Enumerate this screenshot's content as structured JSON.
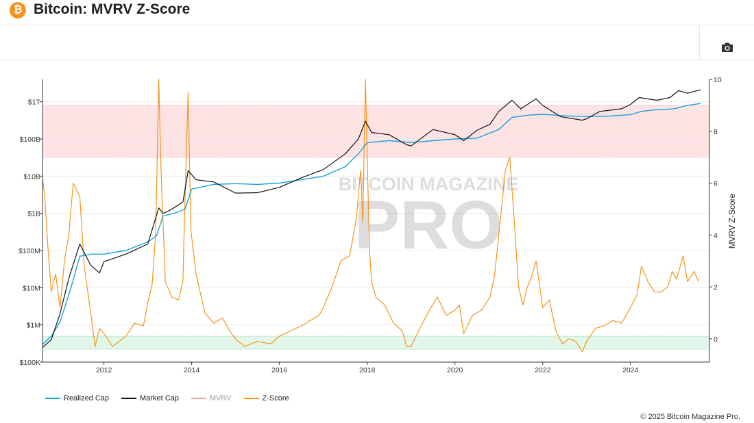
{
  "header": {
    "title": "Bitcoin: MVRV Z-Score",
    "logo_glyph": "₿",
    "logo_icon": "bitcoin-logo-icon"
  },
  "toolbar": {
    "camera_icon": "camera-icon"
  },
  "watermark": {
    "line1": "BITCOIN MAGAZINE",
    "line2": "PRO"
  },
  "footer": {
    "copyright": "© 2025 Bitcoin Magazine Pro."
  },
  "colors": {
    "realized_cap": "#1aa1e0",
    "market_cap": "#111111",
    "mvrv": "#f4a3a3",
    "zscore": "#f7931a",
    "red_band": "#fde3e3",
    "green_band": "#e3f6ea"
  },
  "chart_data": {
    "type": "line",
    "title": "",
    "xlabel": "",
    "ylabel_left": "",
    "ylabel_right": "MVRV Z-Score",
    "x_range": [
      2010.6,
      2025.8
    ],
    "x_ticks": [
      2012,
      2014,
      2016,
      2018,
      2020,
      2022,
      2024
    ],
    "y_left_scale": "log",
    "y_left_range_usd": [
      100000,
      4000000000000
    ],
    "y_left_ticks": [
      {
        "value": 100000,
        "label": "$100K"
      },
      {
        "value": 1000000,
        "label": "$1M"
      },
      {
        "value": 10000000,
        "label": "$10M"
      },
      {
        "value": 100000000,
        "label": "$100M"
      },
      {
        "value": 1000000000,
        "label": "$1B"
      },
      {
        "value": 10000000000,
        "label": "$10B"
      },
      {
        "value": 100000000000,
        "label": "$100B"
      },
      {
        "value": 1000000000000,
        "label": "$1T"
      }
    ],
    "y_right_range": [
      -0.9,
      10
    ],
    "y_right_ticks": [
      0,
      2,
      4,
      6,
      8,
      10
    ],
    "bands": [
      {
        "name": "red",
        "axis": "right",
        "from": 7,
        "to": 9
      },
      {
        "name": "green",
        "axis": "right",
        "from": -0.4,
        "to": 0.1
      }
    ],
    "legend": [
      "Realized Cap",
      "Market Cap",
      "MVRV",
      "Z-Score"
    ],
    "legend_position": "bottom-left",
    "series": [
      {
        "name": "Realized Cap",
        "axis": "left",
        "x": [
          2010.6,
          2010.8,
          2011.0,
          2011.25,
          2011.45,
          2011.7,
          2012.0,
          2012.5,
          2013.0,
          2013.2,
          2013.35,
          2013.6,
          2013.85,
          2014.0,
          2014.5,
          2015.0,
          2015.5,
          2016.0,
          2016.5,
          2017.0,
          2017.5,
          2017.8,
          2018.0,
          2018.5,
          2019.0,
          2019.5,
          2020.0,
          2020.5,
          2021.0,
          2021.3,
          2021.7,
          2022.0,
          2022.5,
          2023.0,
          2023.5,
          2024.0,
          2024.25,
          2024.5,
          2025.0,
          2025.3,
          2025.6
        ],
        "y": [
          300000,
          500000,
          1200000,
          10000000,
          70000000,
          80000000,
          80000000,
          100000000,
          170000000,
          250000000,
          850000000,
          1000000000,
          1300000000,
          4500000000,
          6000000000,
          6300000000,
          6000000000,
          6500000000,
          8000000000,
          10000000000,
          18000000000,
          40000000000,
          80000000000,
          90000000000,
          80000000000,
          90000000000,
          100000000000,
          105000000000,
          180000000000,
          380000000000,
          440000000000,
          460000000000,
          420000000000,
          400000000000,
          410000000000,
          450000000000,
          550000000000,
          600000000000,
          650000000000,
          800000000000,
          900000000000
        ]
      },
      {
        "name": "Market Cap",
        "axis": "left",
        "x": [
          2010.6,
          2010.8,
          2011.0,
          2011.2,
          2011.45,
          2011.7,
          2011.9,
          2012.0,
          2012.5,
          2013.0,
          2013.25,
          2013.35,
          2013.5,
          2013.8,
          2013.92,
          2014.1,
          2014.5,
          2015.0,
          2015.5,
          2016.0,
          2016.5,
          2017.0,
          2017.5,
          2017.8,
          2017.96,
          2018.1,
          2018.5,
          2018.9,
          2019.0,
          2019.5,
          2020.0,
          2020.2,
          2020.5,
          2020.8,
          2021.0,
          2021.3,
          2021.5,
          2021.85,
          2022.0,
          2022.4,
          2022.9,
          2023.0,
          2023.3,
          2023.8,
          2024.0,
          2024.2,
          2024.6,
          2024.9,
          2025.1,
          2025.3,
          2025.6
        ],
        "y": [
          250000,
          400000,
          2000000,
          18000000,
          150000000,
          40000000,
          25000000,
          50000000,
          80000000,
          150000000,
          1400000000,
          1000000000,
          1200000000,
          2000000000,
          14000000000,
          8000000000,
          7000000000,
          3500000000,
          3600000000,
          5000000000,
          9000000000,
          15000000000,
          40000000000,
          100000000000,
          300000000000,
          150000000000,
          130000000000,
          70000000000,
          65000000000,
          180000000000,
          130000000000,
          90000000000,
          170000000000,
          250000000000,
          550000000000,
          1100000000000,
          650000000000,
          1200000000000,
          800000000000,
          400000000000,
          320000000000,
          350000000000,
          550000000000,
          650000000000,
          850000000000,
          1300000000000,
          1100000000000,
          1300000000000,
          2000000000000,
          1700000000000,
          2100000000000
        ]
      },
      {
        "name": "Z-Score",
        "axis": "right",
        "x": [
          2010.6,
          2010.65,
          2010.72,
          2010.8,
          2010.9,
          2011.0,
          2011.1,
          2011.2,
          2011.3,
          2011.45,
          2011.55,
          2011.7,
          2011.8,
          2011.9,
          2012.0,
          2012.2,
          2012.5,
          2012.7,
          2012.9,
          2013.0,
          2013.1,
          2013.18,
          2013.25,
          2013.3,
          2013.4,
          2013.55,
          2013.7,
          2013.8,
          2013.85,
          2013.92,
          2013.98,
          2014.1,
          2014.3,
          2014.5,
          2014.7,
          2014.9,
          2015.0,
          2015.2,
          2015.5,
          2015.8,
          2016.0,
          2016.5,
          2016.9,
          2017.0,
          2017.2,
          2017.4,
          2017.6,
          2017.75,
          2017.85,
          2017.9,
          2017.96,
          2018.05,
          2018.1,
          2018.2,
          2018.4,
          2018.6,
          2018.8,
          2018.9,
          2019.0,
          2019.2,
          2019.45,
          2019.6,
          2019.8,
          2020.0,
          2020.1,
          2020.2,
          2020.4,
          2020.6,
          2020.8,
          2020.9,
          2021.0,
          2021.15,
          2021.25,
          2021.35,
          2021.45,
          2021.55,
          2021.65,
          2021.75,
          2021.85,
          2022.0,
          2022.15,
          2022.3,
          2022.45,
          2022.6,
          2022.75,
          2022.9,
          2023.0,
          2023.2,
          2023.4,
          2023.6,
          2023.8,
          2024.0,
          2024.15,
          2024.25,
          2024.4,
          2024.55,
          2024.7,
          2024.85,
          2024.95,
          2025.05,
          2025.2,
          2025.3,
          2025.45,
          2025.55
        ],
        "y": [
          6.2,
          5.5,
          3.6,
          1.8,
          2.5,
          1.2,
          3.0,
          4.0,
          6.0,
          5.5,
          2.8,
          1.0,
          -0.3,
          0.4,
          0.2,
          -0.3,
          0.1,
          0.6,
          0.5,
          1.4,
          2.1,
          4.1,
          10.0,
          6.6,
          2.2,
          1.6,
          1.5,
          2.2,
          5.5,
          9.5,
          4.2,
          2.5,
          1.0,
          0.6,
          0.8,
          0.2,
          0.0,
          -0.3,
          -0.1,
          -0.2,
          0.1,
          0.5,
          0.9,
          1.2,
          2.0,
          3.0,
          3.2,
          4.6,
          6.5,
          4.5,
          10.0,
          3.5,
          2.2,
          1.6,
          1.3,
          0.6,
          0.3,
          -0.3,
          -0.3,
          0.4,
          1.2,
          1.6,
          0.9,
          1.1,
          1.3,
          0.2,
          0.9,
          1.1,
          1.6,
          2.4,
          4.0,
          6.5,
          7.0,
          4.6,
          2.0,
          1.3,
          2.0,
          2.4,
          3.0,
          1.2,
          1.5,
          0.3,
          -0.2,
          0.0,
          -0.1,
          -0.5,
          -0.1,
          0.4,
          0.5,
          0.7,
          0.6,
          1.2,
          1.7,
          2.8,
          2.2,
          1.8,
          1.8,
          2.0,
          2.6,
          2.3,
          3.2,
          2.2,
          2.6,
          2.2
        ]
      }
    ]
  }
}
